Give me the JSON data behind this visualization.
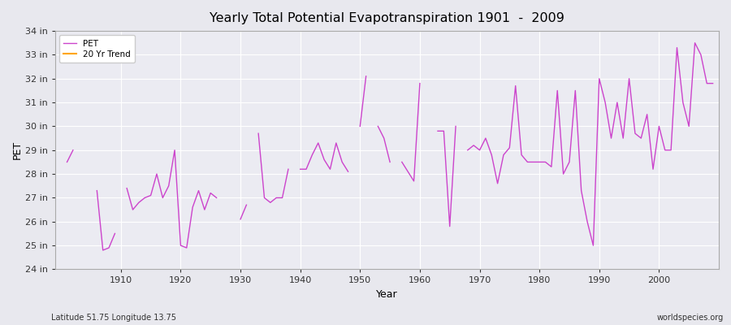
{
  "title": "Yearly Total Potential Evapotranspiration 1901  -  2009",
  "xlabel": "Year",
  "ylabel": "PET",
  "footnote_left": "Latitude 51.75 Longitude 13.75",
  "footnote_right": "worldspecies.org",
  "pet_color": "#cc44cc",
  "trend_color": "#FFA500",
  "bg_color": "#e8e8ee",
  "plot_bg_color": "#ebebf2",
  "grid_color": "#ffffff",
  "ylim": [
    24,
    34
  ],
  "xlim": [
    1899,
    2010
  ],
  "years": [
    1901,
    1902,
    1906,
    1907,
    1908,
    1909,
    1911,
    1912,
    1913,
    1914,
    1915,
    1916,
    1917,
    1918,
    1919,
    1920,
    1921,
    1922,
    1923,
    1924,
    1925,
    1926,
    1930,
    1931,
    1933,
    1934,
    1935,
    1936,
    1937,
    1938,
    1940,
    1941,
    1942,
    1943,
    1944,
    1945,
    1946,
    1947,
    1948,
    1950,
    1951,
    1953,
    1954,
    1955,
    1957,
    1958,
    1959,
    1960,
    1963,
    1964,
    1965,
    1966,
    1968,
    1969,
    1970,
    1971,
    1972,
    1973,
    1974,
    1975,
    1976,
    1977,
    1978,
    1979,
    1980,
    1981,
    1982,
    1983,
    1984,
    1985,
    1986,
    1987,
    1988,
    1989,
    1990,
    1991,
    1992,
    1993,
    1994,
    1995,
    1996,
    1997,
    1998,
    1999,
    2000,
    2001,
    2002,
    2003,
    2004,
    2005,
    2006,
    2007,
    2008,
    2009
  ],
  "values": [
    28.5,
    29.0,
    27.3,
    24.8,
    24.9,
    25.5,
    27.4,
    26.5,
    26.8,
    27.0,
    27.1,
    28.0,
    27.0,
    27.5,
    29.0,
    25.0,
    24.9,
    26.6,
    27.3,
    26.5,
    27.2,
    27.0,
    26.1,
    26.7,
    29.7,
    27.0,
    26.8,
    27.0,
    27.0,
    28.2,
    28.2,
    28.2,
    28.8,
    29.3,
    28.6,
    28.2,
    29.3,
    28.5,
    28.1,
    30.0,
    32.1,
    30.0,
    29.5,
    28.5,
    28.5,
    28.1,
    27.7,
    31.8,
    29.8,
    29.8,
    25.8,
    30.0,
    29.0,
    29.2,
    29.0,
    29.5,
    28.8,
    27.6,
    28.8,
    29.1,
    31.7,
    28.8,
    28.5,
    28.5,
    28.5,
    28.5,
    28.3,
    31.5,
    28.0,
    28.5,
    31.5,
    27.3,
    26.0,
    25.0,
    32.0,
    31.0,
    29.5,
    31.0,
    29.5,
    32.0,
    29.7,
    29.5,
    30.5,
    28.2,
    30.0,
    29.0,
    29.0,
    33.3,
    31.0,
    30.0,
    33.5,
    33.0,
    31.8,
    31.8
  ]
}
